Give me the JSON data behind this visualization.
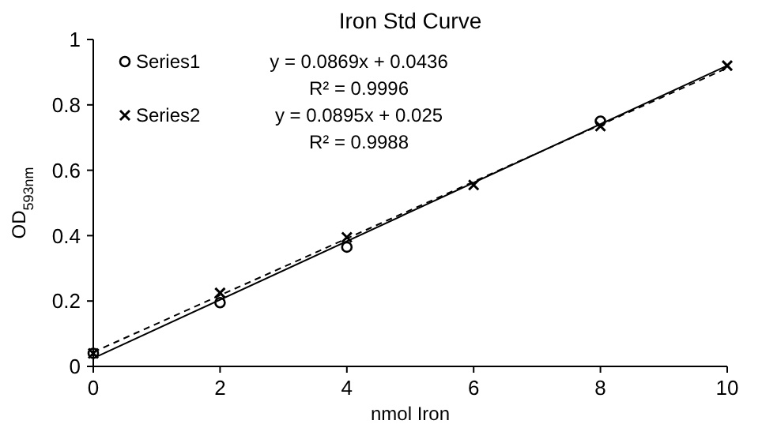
{
  "chart_data": {
    "type": "scatter",
    "title": "Iron Std Curve",
    "xlabel": "nmol Iron",
    "ylabel": "OD$_{593nm}$",
    "xlim": [
      0,
      10
    ],
    "xticks": [
      0,
      2,
      4,
      6,
      8,
      10
    ],
    "ylim": [
      0,
      1
    ],
    "yticks": [
      0,
      0.2,
      0.4,
      0.6,
      0.8,
      1
    ],
    "grid": false,
    "legend": "top left",
    "annotations": [
      "y = 0.0869x + 0.0436",
      "R² = 0.9996",
      "y = 0.0895x + 0.025",
      "R² = 0.9988"
    ],
    "series": [
      {
        "name": "Series1",
        "color": "#000000",
        "marker": "circle",
        "x": [
          0,
          2,
          4,
          8
        ],
        "values": [
          0.04,
          0.195,
          0.365,
          0.75
        ]
      },
      {
        "name": "Series2",
        "color": "#000000",
        "marker": "cross",
        "x": [
          0,
          2,
          4,
          6,
          8,
          10
        ],
        "values": [
          0.04,
          0.225,
          0.395,
          0.555,
          0.735,
          0.92
        ]
      },
      {
        "type": "line",
        "color": "#000000",
        "line_style": "dashed",
        "marker": "none",
        "x": [
          0,
          10
        ],
        "values": [
          0.0436,
          0.9126
        ]
      },
      {
        "type": "line",
        "color": "#000000",
        "line_style": "solid",
        "marker": "none",
        "x": [
          0,
          10
        ],
        "values": [
          0.025,
          0.92
        ]
      }
    ]
  }
}
